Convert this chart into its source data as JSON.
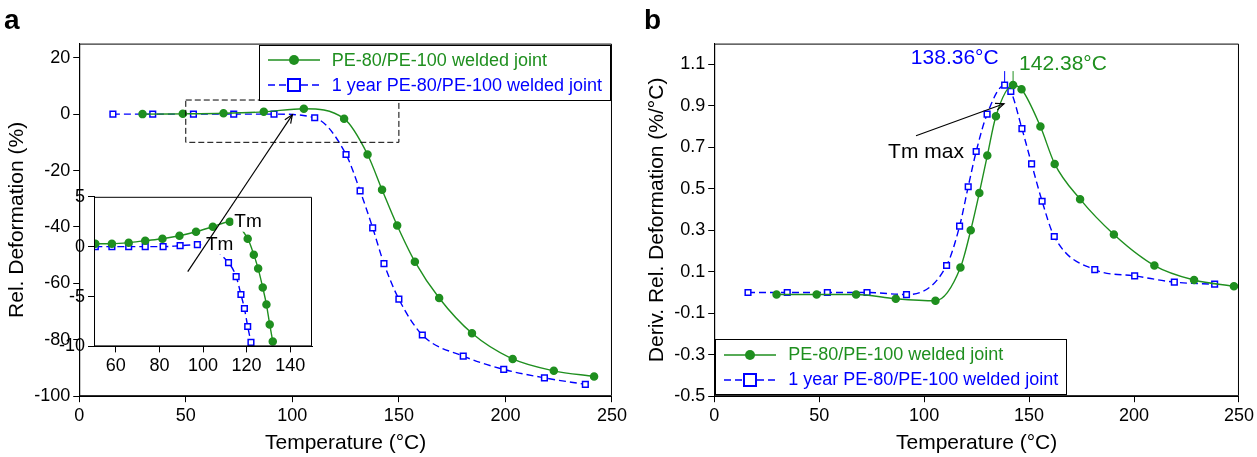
{
  "chart_data": [
    {
      "type": "line",
      "title": "a",
      "xlabel": "Temperature (°C)",
      "ylabel": "Rel. Deformation (%)",
      "xlim": [
        0,
        250
      ],
      "xticks": [
        0,
        50,
        100,
        150,
        200,
        250
      ],
      "ylim": [
        -100,
        25
      ],
      "yticks": [
        -100,
        -80,
        -60,
        -40,
        -20,
        0,
        20
      ],
      "legend": "top right",
      "series": [
        {
          "name": "PE-80/PE-100 welded joint",
          "color": "#1f8f1f",
          "marker": "circle",
          "line_style": "solid",
          "x": [
            29.7,
            48.6,
            67.7,
            86.6,
            105.4,
            124.3,
            135.3,
            142.1,
            149.2,
            157.5,
            168.9,
            184.3,
            203.4,
            222.7,
            241.6
          ],
          "values": [
            0,
            0.1,
            0.3,
            0.8,
            1.9,
            -1.6,
            -14.3,
            -26.8,
            -39.5,
            -52.3,
            -65.2,
            -77.7,
            -86.8,
            -91,
            -93
          ]
        },
        {
          "name": "1 year PE-80/PE-100 welded joint",
          "color": "#0000ff",
          "marker": "square",
          "line_style": "dashed",
          "x": [
            15.8,
            34.5,
            53.6,
            72.5,
            91.4,
            110.5,
            125.2,
            131.8,
            137.7,
            143,
            150,
            161,
            180.2,
            199.2,
            218.3,
            237.5
          ],
          "values": [
            0,
            0,
            0,
            0,
            0,
            -1.3,
            -14.3,
            -27.2,
            -40.3,
            -53,
            -65.6,
            -78.3,
            -85.8,
            -90.5,
            -93.5,
            -95.8
          ]
        }
      ]
    },
    {
      "type": "line",
      "xlim": [
        50,
        150
      ],
      "xticks": [
        60,
        80,
        100,
        120,
        140
      ],
      "ylim": [
        -10,
        5
      ],
      "yticks": [
        -10,
        -5,
        0,
        5
      ],
      "annotations": [
        {
          "text": "Tm",
          "x": 113,
          "y": 2.5
        },
        {
          "text": "Tm",
          "x": 100,
          "y": 0.2
        }
      ],
      "series": [
        {
          "color": "#1f8f1f",
          "marker": "circle",
          "line_style": "solid",
          "x": [
            50.6,
            58.2,
            65.9,
            73.5,
            81.4,
            89.2,
            96.8,
            104.5,
            112.3,
            120.5,
            123.3,
            125.3,
            127.4,
            129.1,
            130.6,
            132
          ],
          "values": [
            0.3,
            0.3,
            0.4,
            0.6,
            0.8,
            1.1,
            1.5,
            2,
            2.5,
            0.8,
            -0.8,
            -2.2,
            -4.1,
            -5.8,
            -7.8,
            -9.5
          ]
        },
        {
          "color": "#0000ff",
          "marker": "square",
          "line_style": "dashed",
          "x": [
            50.6,
            58.2,
            65.9,
            73.5,
            81.7,
            89.5,
            97.4,
            111.7,
            115.2,
            117.4,
            119,
            120.5,
            122
          ],
          "values": [
            0,
            0,
            0,
            0,
            0,
            0.1,
            0.2,
            -1.6,
            -3,
            -4.8,
            -6.2,
            -8,
            -9.6
          ]
        }
      ]
    },
    {
      "type": "line",
      "title": "b",
      "xlabel": "Temperature (°C)",
      "ylabel": "Deriv. Rel. Deformation (%/°C)",
      "xlim": [
        0,
        250
      ],
      "xticks": [
        0,
        50,
        100,
        150,
        200,
        250
      ],
      "ylim": [
        -0.5,
        1.2
      ],
      "yticks": [
        -0.5,
        -0.3,
        -0.1,
        0.1,
        0.3,
        0.5,
        0.7,
        0.9,
        1.1
      ],
      "legend": "bottom left",
      "annotations": [
        {
          "text": "138.36°C",
          "x": 138.36,
          "y": 1.0
        },
        {
          "text": "142.38°C",
          "x": 142.38,
          "y": 1.0
        },
        {
          "text": "Tm max",
          "x": 139,
          "y": 0.91
        }
      ],
      "series": [
        {
          "name": "PE-80/PE-100 welded joint",
          "color": "#1f8f1f",
          "marker": "circle",
          "line_style": "solid",
          "x": [
            29.7,
            48.8,
            67.6,
            86.5,
            105.4,
            117.3,
            122.2,
            126.3,
            130.1,
            134.2,
            142.38,
            146.4,
            155.4,
            162.2,
            174.3,
            190.4,
            209.7,
            228.6,
            247.6
          ],
          "values": [
            -0.01,
            -0.01,
            -0.01,
            -0.03,
            -0.04,
            0.12,
            0.3,
            0.48,
            0.66,
            0.85,
            1.0,
            0.98,
            0.8,
            0.62,
            0.45,
            0.28,
            0.13,
            0.06,
            0.03
          ]
        },
        {
          "name": "1 year PE-80/PE-100 welded joint",
          "color": "#0000ff",
          "marker": "square",
          "line_style": "dashed",
          "x": [
            16.1,
            34.8,
            53.9,
            72.8,
            91.6,
            110.7,
            116.9,
            121,
            124.8,
            130,
            138.36,
            141.3,
            146.6,
            151.2,
            156.2,
            162,
            181.3,
            200.3,
            219.2,
            238.4
          ],
          "values": [
            0,
            0,
            0,
            0,
            -0.01,
            0.13,
            0.32,
            0.51,
            0.68,
            0.86,
            1.0,
            0.97,
            0.79,
            0.62,
            0.44,
            0.27,
            0.11,
            0.08,
            0.05,
            0.04
          ]
        }
      ]
    }
  ]
}
